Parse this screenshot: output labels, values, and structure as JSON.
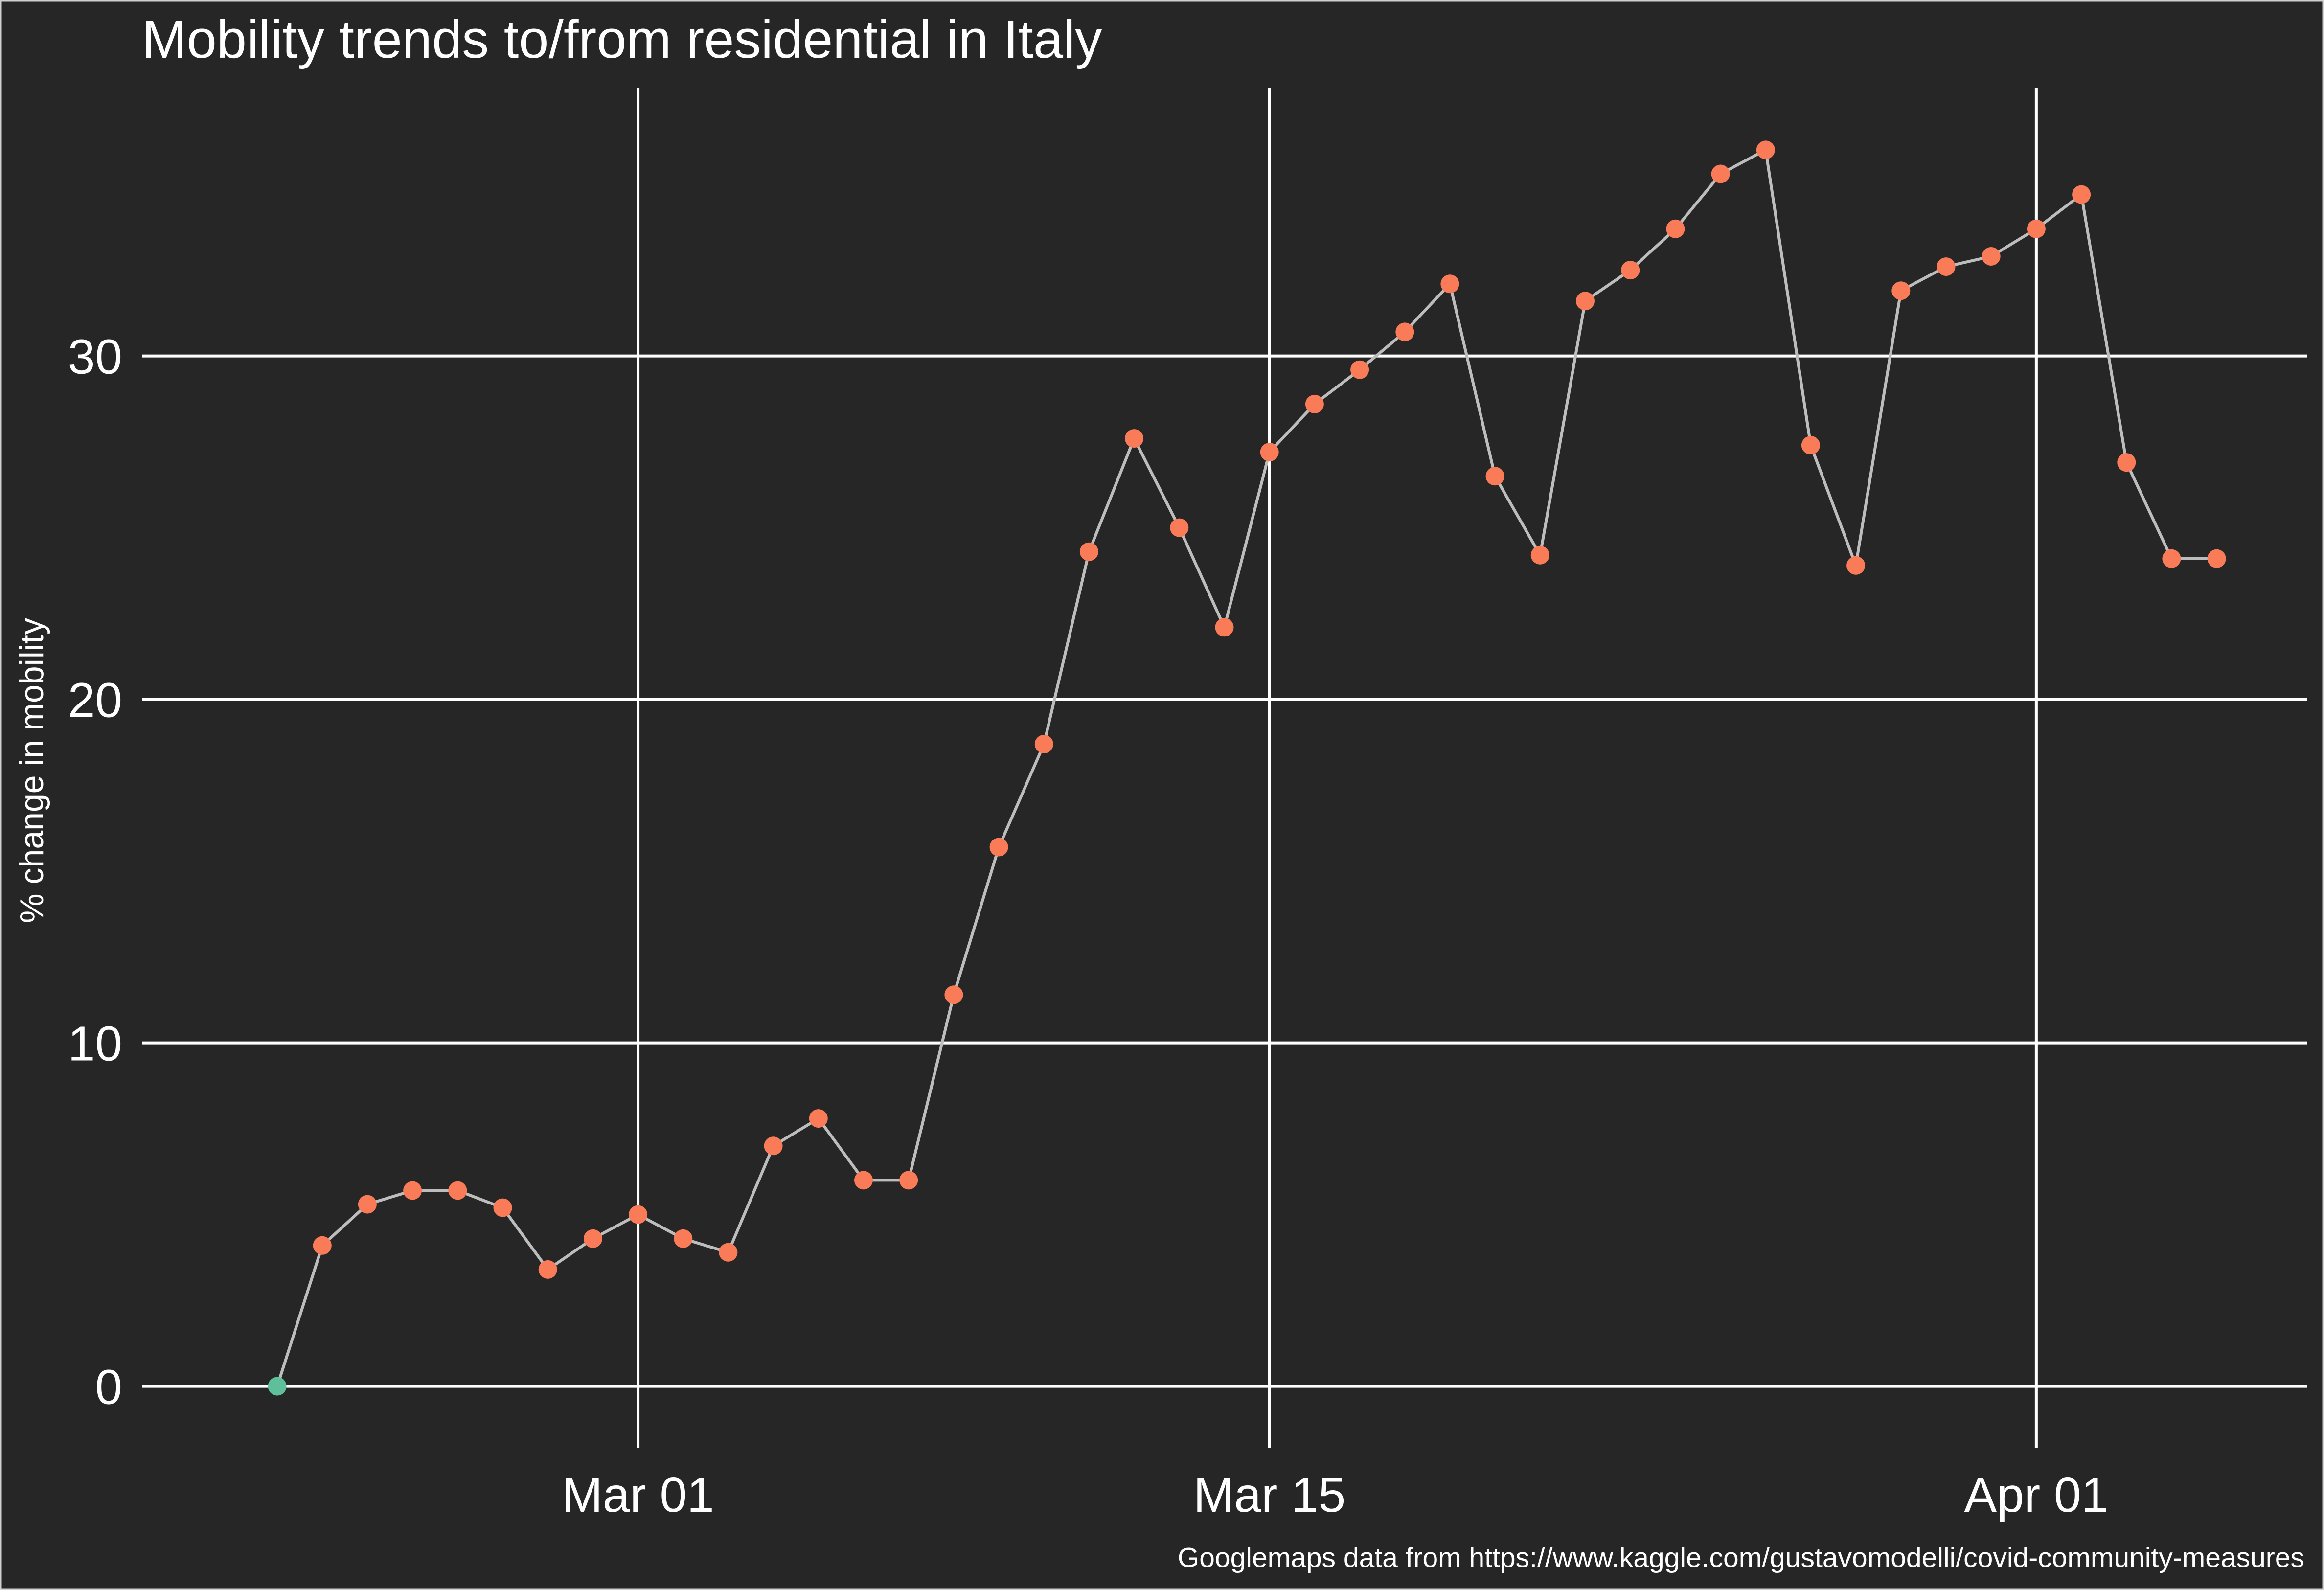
{
  "chart_data": {
    "type": "line",
    "title": "Mobility trends to/from residential in Italy",
    "xlabel": "",
    "ylabel": "% change in mobility",
    "caption": "Googlemaps data from https://www.kaggle.com/gustavomodelli/covid-community-measures",
    "x_ticks": [
      {
        "date": "2020-03-01",
        "label": "Mar 01"
      },
      {
        "date": "2020-03-15",
        "label": "Mar 15"
      },
      {
        "date": "2020-04-01",
        "label": "Apr 01"
      }
    ],
    "y_ticks": [
      0,
      10,
      20,
      30
    ],
    "xlim": [
      "2020-02-19",
      "2020-04-07"
    ],
    "ylim": [
      -1.8,
      37.8
    ],
    "grid": true,
    "legend": "none",
    "colors": {
      "background": "#262626",
      "grid": "#ffffff",
      "line": "#bdbdbd",
      "point": "#f97b57",
      "baseline_point": "#5fbf9b",
      "text": "#ffffff"
    },
    "series": [
      {
        "x": [
          "2020-02-22",
          "2020-02-23",
          "2020-02-24",
          "2020-02-25",
          "2020-02-26",
          "2020-02-27",
          "2020-02-28",
          "2020-02-29",
          "2020-03-01",
          "2020-03-02",
          "2020-03-03",
          "2020-03-04",
          "2020-03-05",
          "2020-03-06",
          "2020-03-07",
          "2020-03-08",
          "2020-03-09",
          "2020-03-10",
          "2020-03-11",
          "2020-03-12",
          "2020-03-13",
          "2020-03-14",
          "2020-03-15",
          "2020-03-16",
          "2020-03-17",
          "2020-03-18",
          "2020-03-19",
          "2020-03-20",
          "2020-03-21",
          "2020-03-22",
          "2020-03-23",
          "2020-03-24",
          "2020-03-25",
          "2020-03-26",
          "2020-03-27",
          "2020-03-28",
          "2020-03-29",
          "2020-03-30",
          "2020-03-31",
          "2020-04-01",
          "2020-04-02",
          "2020-04-03",
          "2020-04-04",
          "2020-04-05"
        ],
        "values": [
          0,
          4.1,
          5.3,
          5.7,
          5.7,
          5.2,
          3.4,
          4.3,
          5.0,
          4.3,
          3.9,
          7.0,
          7.8,
          6.0,
          6.0,
          11.4,
          15.7,
          18.7,
          24.3,
          27.6,
          25.0,
          22.1,
          27.2,
          28.6,
          29.6,
          30.7,
          32.1,
          26.5,
          24.2,
          31.6,
          32.5,
          33.7,
          35.3,
          36.0,
          27.4,
          23.9,
          31.9,
          32.6,
          32.9,
          33.7,
          34.7,
          26.9,
          24.1,
          24.1
        ]
      }
    ]
  }
}
